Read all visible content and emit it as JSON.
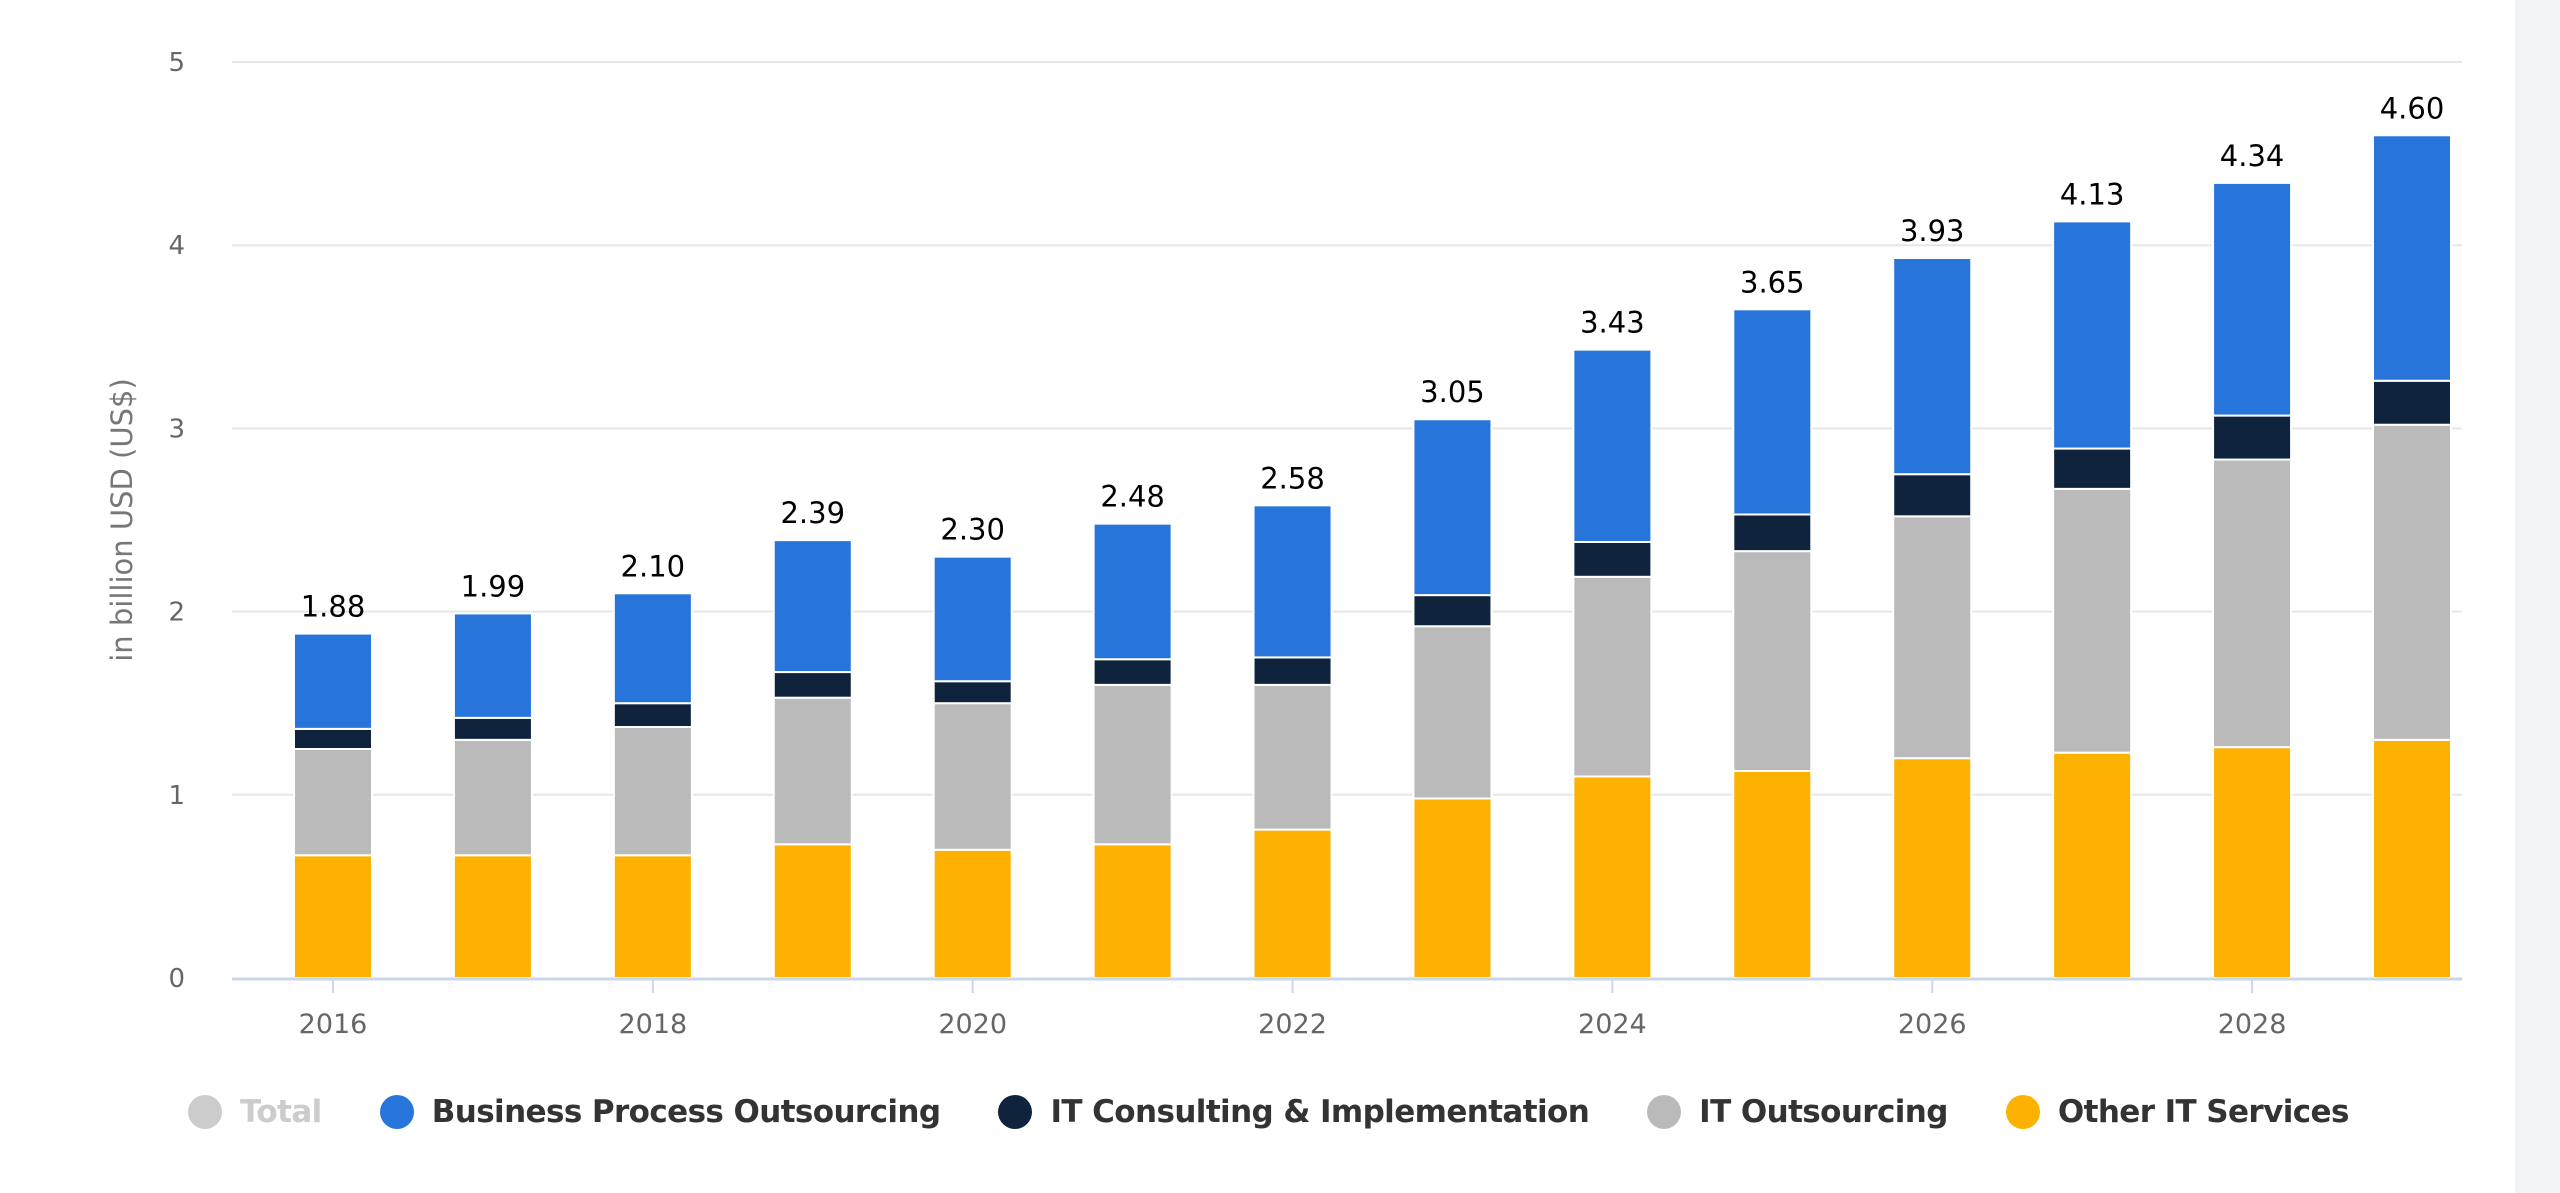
{
  "chart_data": {
    "type": "bar",
    "stacked": true,
    "title": "",
    "xlabel": "",
    "ylabel": "in billion USD (US$)",
    "ylim": [
      0,
      5
    ],
    "yticks": [
      "0",
      "1",
      "2",
      "3",
      "4",
      "5"
    ],
    "grid": true,
    "legend_position": "bottom",
    "categories": [
      "2016",
      "2017",
      "2018",
      "2019",
      "2020",
      "2021",
      "2022",
      "2023",
      "2024",
      "2025",
      "2026",
      "2027",
      "2028",
      "2029"
    ],
    "xtick_labels": [
      "2016",
      "2018",
      "2020",
      "2022",
      "2024",
      "2026",
      "2028"
    ],
    "totals": [
      1.88,
      1.99,
      2.1,
      2.39,
      2.3,
      2.48,
      2.58,
      3.05,
      3.43,
      3.65,
      3.93,
      4.13,
      4.34,
      4.6
    ],
    "total_labels": [
      "1.88",
      "1.99",
      "2.10",
      "2.39",
      "2.30",
      "2.48",
      "2.58",
      "3.05",
      "3.43",
      "3.65",
      "3.93",
      "4.13",
      "4.34",
      "4.60"
    ],
    "series": [
      {
        "name": "Other IT Services",
        "color": "#fdb100",
        "values": [
          0.67,
          0.67,
          0.67,
          0.73,
          0.7,
          0.73,
          0.81,
          0.98,
          1.1,
          1.13,
          1.2,
          1.23,
          1.26,
          1.3
        ]
      },
      {
        "name": "IT Outsourcing",
        "color": "#bababa",
        "values": [
          0.58,
          0.63,
          0.7,
          0.8,
          0.8,
          0.87,
          0.79,
          0.94,
          1.09,
          1.2,
          1.32,
          1.44,
          1.57,
          1.72
        ]
      },
      {
        "name": "IT Consulting & Implementation",
        "color": "#0f243c",
        "values": [
          0.11,
          0.12,
          0.13,
          0.14,
          0.12,
          0.14,
          0.15,
          0.17,
          0.19,
          0.2,
          0.23,
          0.22,
          0.24,
          0.24
        ]
      },
      {
        "name": "Business Process Outsourcing",
        "color": "#2775db",
        "values": [
          0.52,
          0.57,
          0.6,
          0.72,
          0.68,
          0.74,
          0.83,
          0.96,
          1.05,
          1.12,
          1.18,
          1.24,
          1.27,
          1.34
        ]
      }
    ],
    "legend": [
      {
        "name": "Total",
        "color": "#cccccc",
        "disabled": true
      },
      {
        "name": "Business Process Outsourcing",
        "color": "#2775db"
      },
      {
        "name": "IT Consulting & Implementation",
        "color": "#0f243c"
      },
      {
        "name": "IT Outsourcing",
        "color": "#bababa"
      },
      {
        "name": "Other IT Services",
        "color": "#fdb100"
      }
    ]
  }
}
